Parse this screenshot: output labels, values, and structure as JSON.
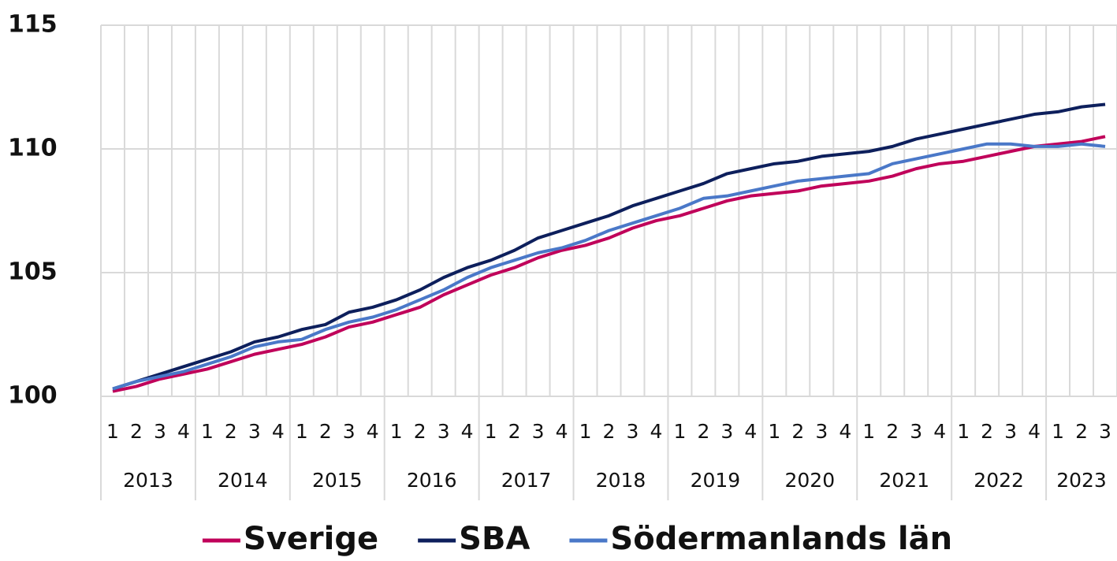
{
  "chart_data": {
    "type": "line",
    "categories": [
      "1",
      "2",
      "3",
      "4",
      "1",
      "2",
      "3",
      "4",
      "1",
      "2",
      "3",
      "4",
      "1",
      "2",
      "3",
      "4",
      "1",
      "2",
      "3",
      "4",
      "1",
      "2",
      "3",
      "4",
      "1",
      "2",
      "3",
      "4",
      "1",
      "2",
      "3",
      "4",
      "1",
      "2",
      "3",
      "4",
      "1",
      "2",
      "3",
      "4",
      "1",
      "2",
      "3"
    ],
    "category_groups": [
      "2013",
      "2014",
      "2015",
      "2016",
      "2017",
      "2018",
      "2019",
      "2020",
      "2021",
      "2022",
      "2023"
    ],
    "ylim": [
      100,
      115
    ],
    "yticks": [
      100,
      105,
      110,
      115
    ],
    "grid": true,
    "series": [
      {
        "name": "Sverige",
        "color": "#c0005a",
        "values": [
          100.2,
          100.4,
          100.7,
          100.9,
          101.1,
          101.4,
          101.7,
          101.9,
          102.1,
          102.4,
          102.8,
          103.0,
          103.3,
          103.6,
          104.1,
          104.5,
          104.9,
          105.2,
          105.6,
          105.9,
          106.1,
          106.4,
          106.8,
          107.1,
          107.3,
          107.6,
          107.9,
          108.1,
          108.2,
          108.3,
          108.5,
          108.6,
          108.7,
          108.9,
          109.2,
          109.4,
          109.5,
          109.7,
          109.9,
          110.1,
          110.2,
          110.3,
          110.5
        ]
      },
      {
        "name": "SBA",
        "color": "#0d1f5c",
        "values": [
          100.3,
          100.6,
          100.9,
          101.2,
          101.5,
          101.8,
          102.2,
          102.4,
          102.7,
          102.9,
          103.4,
          103.6,
          103.9,
          104.3,
          104.8,
          105.2,
          105.5,
          105.9,
          106.4,
          106.7,
          107.0,
          107.3,
          107.7,
          108.0,
          108.3,
          108.6,
          109.0,
          109.2,
          109.4,
          109.5,
          109.7,
          109.8,
          109.9,
          110.1,
          110.4,
          110.6,
          110.8,
          111.0,
          111.2,
          111.4,
          111.5,
          111.7,
          111.8
        ]
      },
      {
        "name": "Södermanlands län",
        "color": "#4a78c8",
        "values": [
          100.3,
          100.6,
          100.8,
          101.0,
          101.3,
          101.6,
          102.0,
          102.2,
          102.3,
          102.7,
          103.0,
          103.2,
          103.5,
          103.9,
          104.3,
          104.8,
          105.2,
          105.5,
          105.8,
          106.0,
          106.3,
          106.7,
          107.0,
          107.3,
          107.6,
          108.0,
          108.1,
          108.3,
          108.5,
          108.7,
          108.8,
          108.9,
          109.0,
          109.4,
          109.6,
          109.8,
          110.0,
          110.2,
          110.2,
          110.1,
          110.1,
          110.2,
          110.1
        ]
      }
    ]
  }
}
